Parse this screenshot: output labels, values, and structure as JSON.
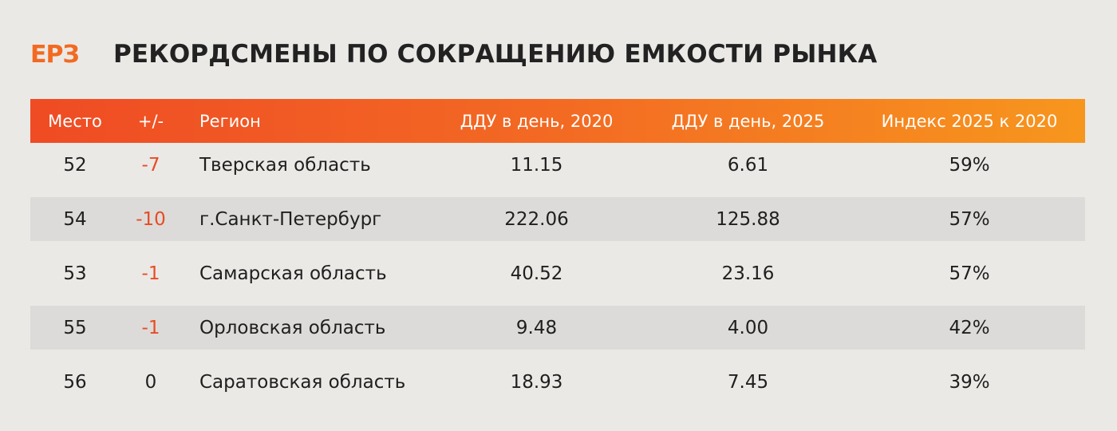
{
  "brand": {
    "logo_text": "ЕРЗ",
    "accent_color": "#f26a21"
  },
  "title": "РЕКОРДСМЕНЫ ПО СОКРАЩЕНИЮ ЕМКОСТИ РЫНКА",
  "table": {
    "columns": [
      "Место",
      "+/-",
      "Регион",
      "ДДУ в день, 2020",
      "ДДУ в день, 2025",
      "Индекс 2025 к 2020"
    ],
    "rows": [
      {
        "place": "52",
        "delta": "-7",
        "region": "Тверская область",
        "v2020": "11.15",
        "v2025": "6.61",
        "index": "59%"
      },
      {
        "place": "54",
        "delta": "-10",
        "region": "г.Санкт-Петербург",
        "v2020": "222.06",
        "v2025": "125.88",
        "index": "57%"
      },
      {
        "place": "53",
        "delta": "-1",
        "region": "Самарская область",
        "v2020": "40.52",
        "v2025": "23.16",
        "index": "57%"
      },
      {
        "place": "55",
        "delta": "-1",
        "region": "Орловская область",
        "v2020": "9.48",
        "v2025": "4.00",
        "index": "42%"
      },
      {
        "place": "56",
        "delta": "0",
        "region": "Саратовская область",
        "v2020": "18.93",
        "v2025": "7.45",
        "index": "39%"
      }
    ]
  },
  "colors": {
    "header_start": "#ef4b24",
    "header_end": "#f7961d",
    "negative": "#e84b23",
    "alt_row": "#dcdbd9"
  }
}
